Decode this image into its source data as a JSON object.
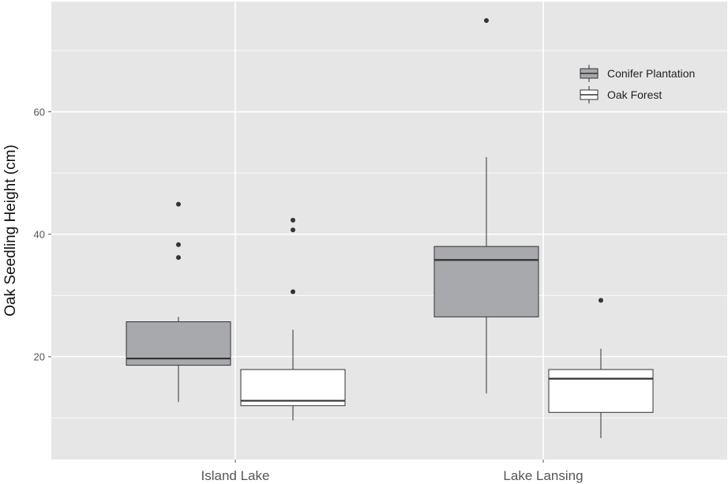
{
  "chart_data": {
    "type": "boxplot",
    "title": "",
    "xlabel": "",
    "ylabel": "Oak Seedling Height (cm)",
    "ylim": [
      3.2,
      78
    ],
    "yticks": [
      20,
      40,
      60
    ],
    "grid": true,
    "legend_position": "top-right",
    "categories": [
      "Island Lake",
      "Lake Lansing"
    ],
    "series": [
      {
        "name": "Conifer Plantation",
        "color": "#a7a9ac",
        "boxes": [
          {
            "whisker_low": 12.6,
            "q1": 18.6,
            "median": 19.7,
            "q3": 25.7,
            "whisker_high": 26.5,
            "outliers": [
              44.9,
              38.3,
              36.2
            ]
          },
          {
            "whisker_low": 14.0,
            "q1": 26.5,
            "median": 35.8,
            "q3": 38.0,
            "whisker_high": 52.6,
            "outliers": [
              74.9
            ]
          }
        ]
      },
      {
        "name": "Oak Forest",
        "color": "#ffffff",
        "boxes": [
          {
            "whisker_low": 9.6,
            "q1": 12.0,
            "median": 12.8,
            "q3": 17.9,
            "whisker_high": 24.4,
            "outliers": [
              42.3,
              40.7,
              30.6
            ]
          },
          {
            "whisker_low": 6.7,
            "q1": 10.9,
            "median": 16.4,
            "q3": 17.9,
            "whisker_high": 21.3,
            "outliers": [
              29.2
            ]
          }
        ]
      }
    ]
  },
  "colors": {
    "panel": "#e6e6e6",
    "grid": "#ffffff",
    "line": "#333333"
  }
}
